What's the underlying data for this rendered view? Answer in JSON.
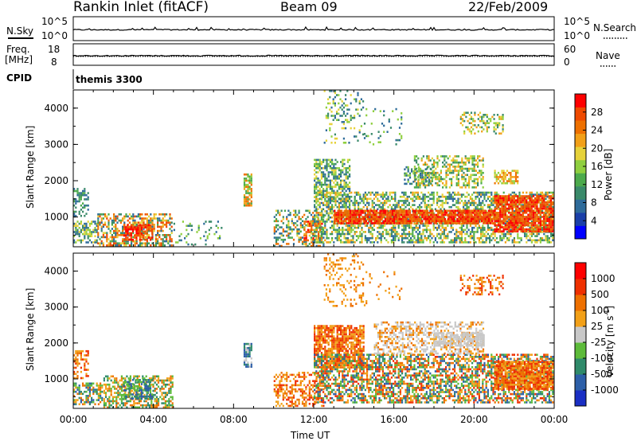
{
  "header": {
    "station": "Rankin Inlet (fitACF)",
    "beam": "Beam 09",
    "date": "22/Feb/2009"
  },
  "top_panels": {
    "nsky_label": "N.Sky",
    "nsky_ticks": [
      "10^5",
      "10^0"
    ],
    "nsearch_label": "N.Search",
    "nsearch_ticks": [
      "10^5",
      "10^0"
    ],
    "freq_label_1": "Freq.",
    "freq_label_2": "[MHz]",
    "freq_ticks": [
      "18",
      "8"
    ],
    "nave_label": "Nave",
    "nave_ticks": [
      "60",
      "0"
    ],
    "cpid_label": "CPID",
    "cpid_value": "themis 3300"
  },
  "power_colorbar": {
    "label": "Power [dB]",
    "ticks": [
      "28",
      "24",
      "20",
      "16",
      "12",
      "8",
      "4"
    ],
    "colors": [
      "#0000ff",
      "#1a3fa8",
      "#2e6b9a",
      "#3a8a6a",
      "#4caa4c",
      "#8fcf3f",
      "#e6d23a",
      "#f2a018",
      "#ee7000",
      "#ef4a00",
      "#ff0000"
    ]
  },
  "velocity_colorbar": {
    "label": "Velocity [m s",
    "label_sup": "-1",
    "label_end": "]",
    "ticks": [
      "1000",
      "500",
      "100",
      "25",
      "-25",
      "-100",
      "-500",
      "-1000"
    ],
    "colors": [
      "#1a2fc4",
      "#2d5fa8",
      "#2f8a6a",
      "#5dbb3a",
      "#c8c8c8",
      "#f2a018",
      "#ee7000",
      "#ef3000",
      "#ff0000"
    ]
  },
  "chart_data": [
    {
      "type": "heatmap",
      "name": "power",
      "ylabel": "Slant Range [km]",
      "xlim": [
        0,
        24
      ],
      "ylim": [
        180,
        4500
      ],
      "yticks": [
        1000,
        2000,
        3000,
        4000
      ],
      "blobs": [
        {
          "t0": 0.0,
          "t1": 0.8,
          "r0": 1000,
          "r1": 1800,
          "density": 0.5,
          "levels": [
            2,
            3,
            4
          ]
        },
        {
          "t0": 0.0,
          "t1": 1.2,
          "r0": 250,
          "r1": 900,
          "density": 0.55,
          "levels": [
            2,
            3,
            5,
            6
          ]
        },
        {
          "t0": 1.2,
          "t1": 5.0,
          "r0": 200,
          "r1": 1100,
          "density": 0.6,
          "levels": [
            2,
            3,
            4,
            6,
            7,
            8,
            9
          ]
        },
        {
          "t0": 2.5,
          "t1": 4.0,
          "r0": 350,
          "r1": 800,
          "density": 0.75,
          "levels": [
            8,
            9,
            10
          ]
        },
        {
          "t0": 5.0,
          "t1": 7.5,
          "r0": 200,
          "r1": 900,
          "density": 0.15,
          "levels": [
            2,
            3,
            5
          ]
        },
        {
          "t0": 8.5,
          "t1": 8.9,
          "r0": 1300,
          "r1": 2200,
          "density": 0.8,
          "levels": [
            4,
            5,
            7,
            8
          ]
        },
        {
          "t0": 10.0,
          "t1": 12.5,
          "r0": 200,
          "r1": 1200,
          "density": 0.4,
          "levels": [
            2,
            3,
            4,
            6,
            8
          ]
        },
        {
          "t0": 11.5,
          "t1": 12.5,
          "r0": 300,
          "r1": 900,
          "density": 0.6,
          "levels": [
            7,
            8,
            9,
            10
          ]
        },
        {
          "t0": 12.0,
          "t1": 13.8,
          "r0": 1400,
          "r1": 2600,
          "density": 0.6,
          "levels": [
            2,
            3,
            4,
            5,
            6
          ]
        },
        {
          "t0": 12.0,
          "t1": 24.0,
          "r0": 300,
          "r1": 1700,
          "density": 0.55,
          "levels": [
            2,
            3,
            4,
            5,
            6,
            7
          ]
        },
        {
          "t0": 13.0,
          "t1": 21.0,
          "r0": 800,
          "r1": 1200,
          "density": 0.9,
          "levels": [
            8,
            9,
            10
          ]
        },
        {
          "t0": 21.0,
          "t1": 24.0,
          "r0": 600,
          "r1": 1600,
          "density": 0.85,
          "levels": [
            8,
            9,
            10
          ]
        },
        {
          "t0": 17.0,
          "t1": 20.5,
          "r0": 1800,
          "r1": 2700,
          "density": 0.5,
          "levels": [
            3,
            4,
            5,
            6,
            7
          ]
        },
        {
          "t0": 21.0,
          "t1": 22.2,
          "r0": 1900,
          "r1": 2300,
          "density": 0.7,
          "levels": [
            5,
            6,
            7,
            8
          ]
        },
        {
          "t0": 19.3,
          "t1": 21.5,
          "r0": 3300,
          "r1": 3900,
          "density": 0.35,
          "levels": [
            3,
            5,
            6,
            7
          ]
        },
        {
          "t0": 12.5,
          "t1": 14.5,
          "r0": 3000,
          "r1": 4500,
          "density": 0.2,
          "levels": [
            2,
            3,
            5,
            6
          ]
        },
        {
          "t0": 14.5,
          "t1": 16.5,
          "r0": 3000,
          "r1": 4000,
          "density": 0.1,
          "levels": [
            2,
            3,
            5
          ]
        },
        {
          "t0": 16.5,
          "t1": 18.0,
          "r0": 1900,
          "r1": 2400,
          "density": 0.4,
          "levels": [
            2,
            3,
            5
          ]
        }
      ]
    },
    {
      "type": "heatmap",
      "name": "velocity",
      "ylabel": "Slant Range [km]",
      "xlabel": "Time UT",
      "xlim": [
        0,
        24
      ],
      "ylim": [
        180,
        4500
      ],
      "yticks": [
        1000,
        2000,
        3000,
        4000
      ],
      "xticks": [
        "00:00",
        "04:00",
        "08:00",
        "12:00",
        "16:00",
        "20:00",
        "00:00"
      ],
      "blobs": [
        {
          "t0": 0.0,
          "t1": 0.8,
          "r0": 1000,
          "r1": 1800,
          "density": 0.45,
          "levels": [
            5,
            6,
            7
          ]
        },
        {
          "t0": 0.0,
          "t1": 1.5,
          "r0": 250,
          "r1": 900,
          "density": 0.55,
          "levels": [
            1,
            2,
            3,
            5,
            6
          ]
        },
        {
          "t0": 1.5,
          "t1": 5.0,
          "r0": 200,
          "r1": 1100,
          "density": 0.55,
          "levels": [
            2,
            3,
            5,
            6
          ]
        },
        {
          "t0": 2.5,
          "t1": 4.0,
          "r0": 400,
          "r1": 1000,
          "density": 0.6,
          "levels": [
            1,
            2,
            3
          ]
        },
        {
          "t0": 8.5,
          "t1": 8.9,
          "r0": 1300,
          "r1": 2000,
          "density": 0.8,
          "levels": [
            1,
            2,
            4
          ]
        },
        {
          "t0": 10.0,
          "t1": 12.5,
          "r0": 200,
          "r1": 1200,
          "density": 0.45,
          "levels": [
            5,
            6,
            7
          ]
        },
        {
          "t0": 12.0,
          "t1": 14.5,
          "r0": 1300,
          "r1": 2500,
          "density": 0.8,
          "levels": [
            5,
            6,
            7
          ]
        },
        {
          "t0": 12.0,
          "t1": 24.0,
          "r0": 300,
          "r1": 1700,
          "density": 0.6,
          "levels": [
            1,
            2,
            3,
            5,
            6,
            7
          ]
        },
        {
          "t0": 15.0,
          "t1": 20.5,
          "r0": 1700,
          "r1": 2600,
          "density": 0.5,
          "levels": [
            4,
            4,
            5,
            6
          ]
        },
        {
          "t0": 18.0,
          "t1": 20.5,
          "r0": 1900,
          "r1": 2300,
          "density": 0.7,
          "levels": [
            4,
            4,
            4
          ]
        },
        {
          "t0": 21.0,
          "t1": 24.0,
          "r0": 700,
          "r1": 1500,
          "density": 0.85,
          "levels": [
            5,
            6,
            7
          ]
        },
        {
          "t0": 19.3,
          "t1": 21.5,
          "r0": 3300,
          "r1": 3900,
          "density": 0.35,
          "levels": [
            5,
            6,
            7
          ]
        },
        {
          "t0": 12.5,
          "t1": 14.5,
          "r0": 3000,
          "r1": 4500,
          "density": 0.2,
          "levels": [
            5,
            6
          ]
        },
        {
          "t0": 14.5,
          "t1": 16.5,
          "r0": 3000,
          "r1": 4000,
          "density": 0.08,
          "levels": [
            5,
            6
          ]
        }
      ]
    }
  ]
}
